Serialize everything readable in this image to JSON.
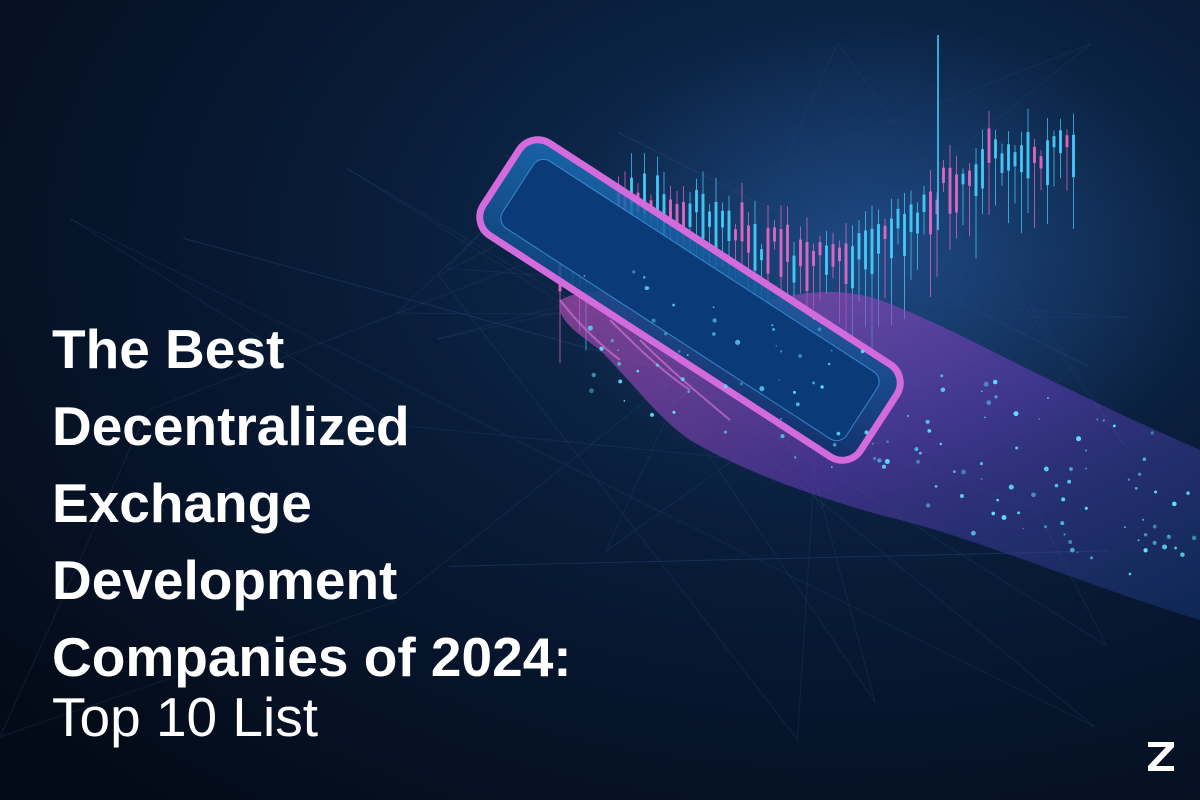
{
  "header": {
    "title_lines": [
      "The Best",
      "Decentralized",
      "Exchange",
      "Development",
      "Companies of 2024:"
    ],
    "subtitle": "Top 10 List"
  }
}
